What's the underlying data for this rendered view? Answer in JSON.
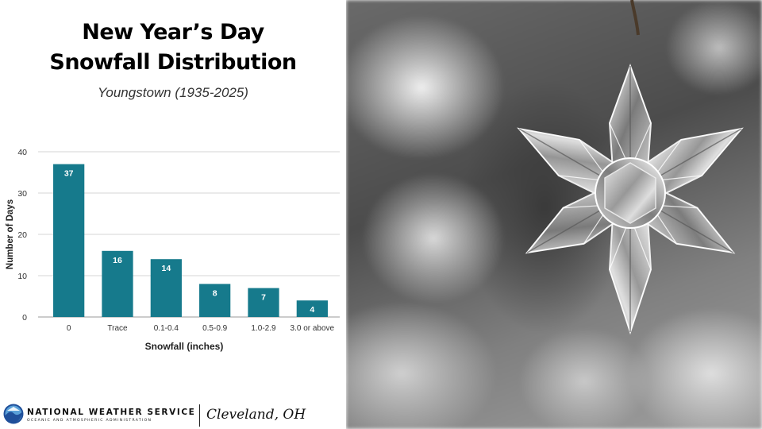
{
  "title_lines": [
    "New Year’s Day",
    "Snowfall Distribution"
  ],
  "subtitle": "Youngstown (1935-2025)",
  "chart_data": {
    "type": "bar",
    "categories": [
      "0",
      "Trace",
      "0.1-0.4",
      "0.5-0.9",
      "1.0-2.9",
      "3.0 or above"
    ],
    "values": [
      37,
      16,
      14,
      8,
      7,
      4
    ],
    "xlabel": "Snowfall (inches)",
    "ylabel": "Number of Days",
    "ylim": [
      0,
      40
    ],
    "yticks": [
      0,
      10,
      20,
      30,
      40
    ],
    "grid": true,
    "data_labels": true,
    "bar_color": "#167a8c"
  },
  "footer": {
    "agency": "NATIONAL WEATHER SERVICE",
    "agency_sub": "OCEANIC AND ATMOSPHERIC ADMINISTRATION",
    "office": "Cleveland, OH",
    "logo_icon": "noaa-logo-icon"
  },
  "photo": {
    "icon": "snowflake-ornament-icon"
  }
}
